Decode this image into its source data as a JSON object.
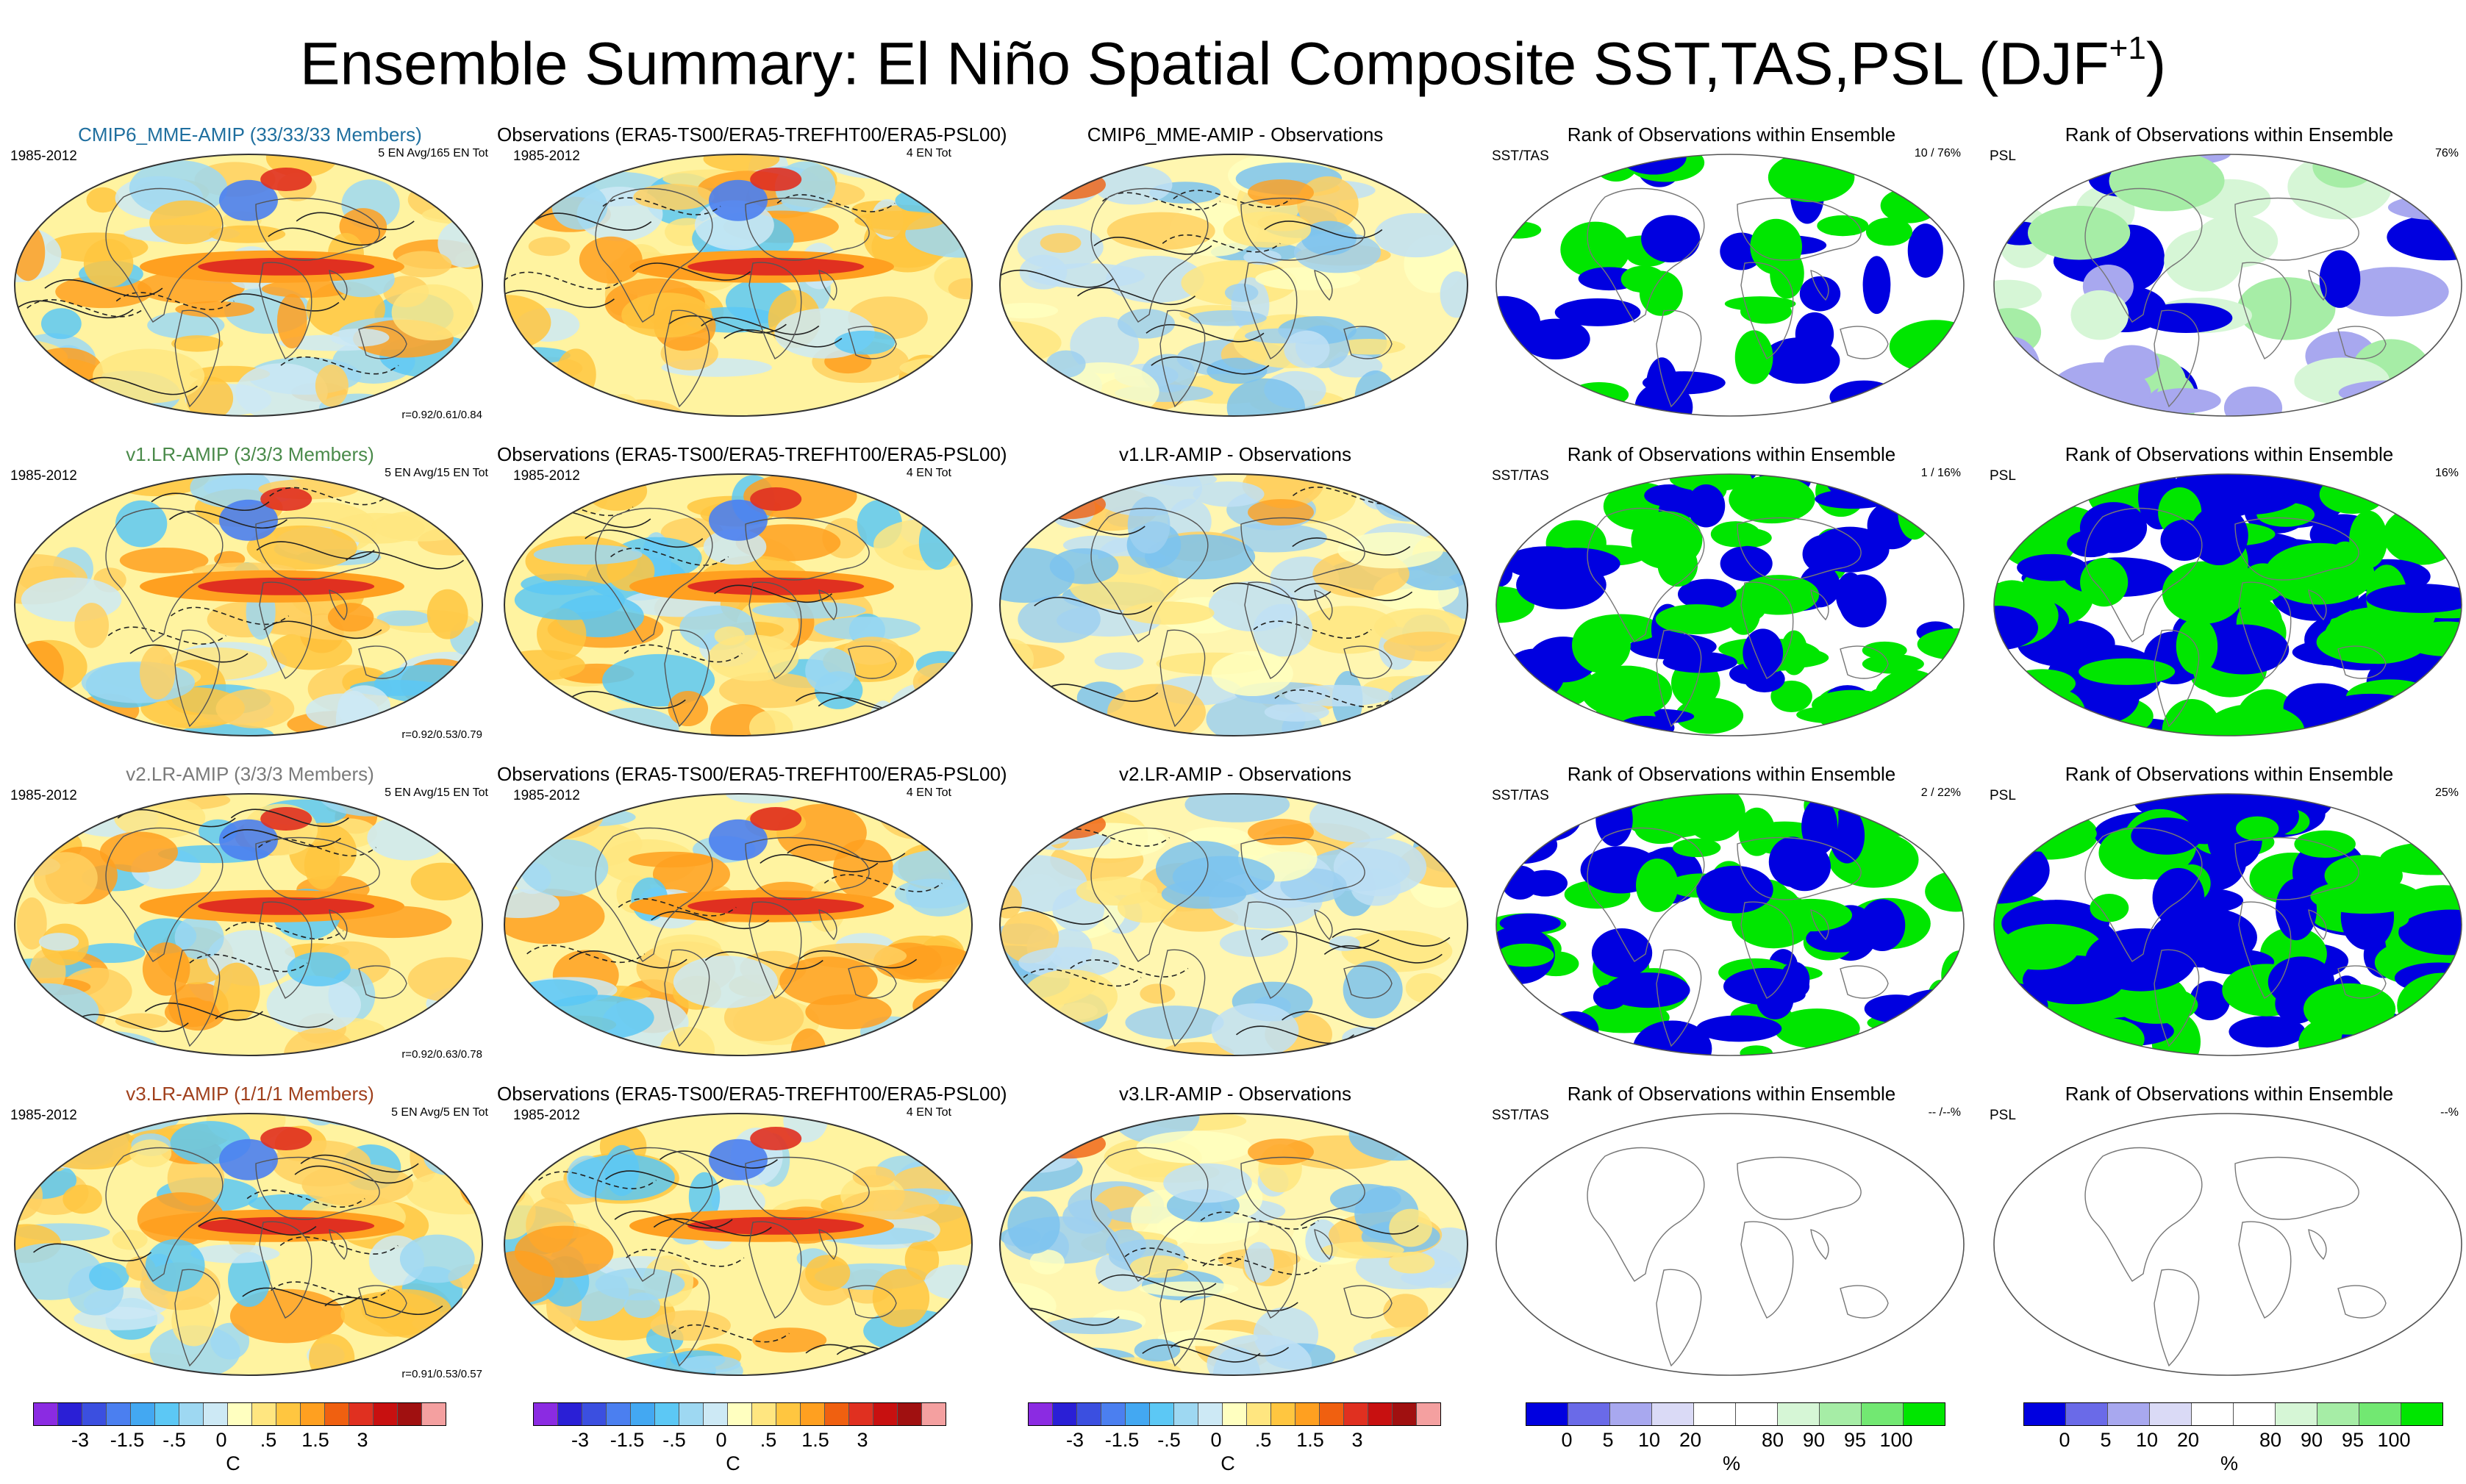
{
  "title": {
    "main": "Ensemble Summary: El Niño Spatial Composite SST,TAS,PSL (DJF",
    "sup": "+1",
    "close": ")"
  },
  "rows": [
    {
      "model": "CMIP6_MME-AMIP (33/33/33 Members)",
      "model_color": "#1f6f9f",
      "years": "1985-2012",
      "model_right": "5 EN Avg/165 EN Tot",
      "corr": "r=0.92/0.61/0.84",
      "obs_title": "Observations (ERA5-TS00/ERA5-TREFHT00/ERA5-PSL00)",
      "obs_years": "1985-2012",
      "obs_right": "4 EN Tot",
      "diff_title": "CMIP6_MME-AMIP - Observations",
      "rank_title": "Rank of Observations within Ensemble",
      "sst_label": "SST/TAS",
      "sst_value": "10 /  76%",
      "psl_label": "PSL",
      "psl_value": "76%",
      "rank_mode": "sparse"
    },
    {
      "model": "v1.LR-AMIP (3/3/3 Members)",
      "model_color": "#4a8a4a",
      "years": "1985-2012",
      "model_right": "5 EN Avg/15 EN Tot",
      "corr": "r=0.92/0.53/0.79",
      "obs_title": "Observations (ERA5-TS00/ERA5-TREFHT00/ERA5-PSL00)",
      "obs_years": "1985-2012",
      "obs_right": "4 EN Tot",
      "diff_title": "v1.LR-AMIP - Observations",
      "rank_title": "Rank of Observations within Ensemble",
      "sst_label": "SST/TAS",
      "sst_value": "1 /  16%",
      "psl_label": "PSL",
      "psl_value": "16%",
      "rank_mode": "dense"
    },
    {
      "model": "v2.LR-AMIP (3/3/3 Members)",
      "model_color": "#7a7a7a",
      "years": "1985-2012",
      "model_right": "5 EN Avg/15 EN Tot",
      "corr": "r=0.92/0.63/0.78",
      "obs_title": "Observations (ERA5-TS00/ERA5-TREFHT00/ERA5-PSL00)",
      "obs_years": "1985-2012",
      "obs_right": "4 EN Tot",
      "diff_title": "v2.LR-AMIP - Observations",
      "rank_title": "Rank of Observations within Ensemble",
      "sst_label": "SST/TAS",
      "sst_value": "2 /  22%",
      "psl_label": "PSL",
      "psl_value": "25%",
      "rank_mode": "dense"
    },
    {
      "model": "v3.LR-AMIP (1/1/1 Members)",
      "model_color": "#a0401c",
      "years": "1985-2012",
      "model_right": "5 EN Avg/5 EN Tot",
      "corr": "r=0.91/0.53/0.57",
      "obs_title": "Observations (ERA5-TS00/ERA5-TREFHT00/ERA5-PSL00)",
      "obs_years": "1985-2012",
      "obs_right": "4 EN Tot",
      "diff_title": "v3.LR-AMIP - Observations",
      "rank_title": "Rank of Observations within Ensemble",
      "sst_label": "SST/TAS",
      "sst_value": "-- /--%",
      "psl_label": "PSL",
      "psl_value": "--%",
      "rank_mode": "empty"
    }
  ],
  "colorbars": {
    "temperature": {
      "colors": [
        "#8b2be2",
        "#2a1fd6",
        "#3b4fe0",
        "#4b7ff0",
        "#43a8f2",
        "#5cc8f5",
        "#9ed8f2",
        "#cde9f5",
        "#ffffc0",
        "#ffe680",
        "#ffc640",
        "#ffa020",
        "#f06010",
        "#e03020",
        "#c81010",
        "#a01010",
        "#f4a0a0"
      ],
      "ticks": [
        "-3",
        "-1.5",
        "-.5",
        "0",
        ".5",
        "1.5",
        "3"
      ],
      "tick_slots": [
        2,
        4,
        6,
        8,
        10,
        12,
        14
      ],
      "unit": "C"
    },
    "rank": {
      "colors": [
        "#0000e0",
        "#6a6ae8",
        "#a8a8ef",
        "#dadaf6",
        "#ffffff",
        "#ffffff",
        "#d6f6d6",
        "#a6eda6",
        "#72e872",
        "#00e600"
      ],
      "ticks": [
        "0",
        "5",
        "10",
        "20",
        "80",
        "90",
        "95",
        "100"
      ],
      "tick_slots": [
        1,
        2,
        3,
        4,
        6,
        7,
        8,
        9
      ],
      "unit": "%"
    }
  }
}
